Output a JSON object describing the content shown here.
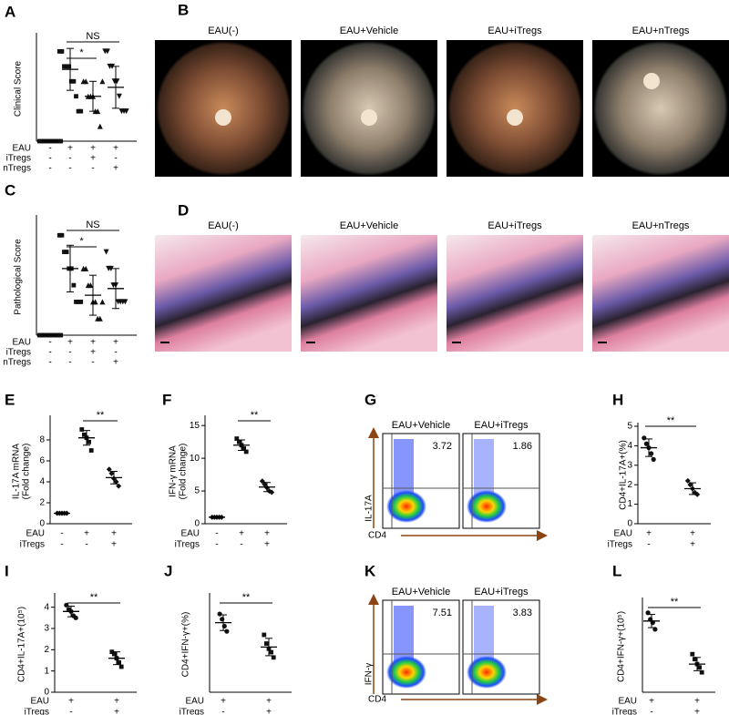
{
  "chart_data": [
    {
      "type": "dotplot",
      "letter": "A",
      "ylabel": [
        "Clinical  Score"
      ],
      "ylim": [
        0,
        3.5
      ],
      "markers": [
        "square",
        "square",
        "triangle",
        "triangle-down"
      ],
      "groups": [
        [
          0,
          0,
          0,
          0,
          0,
          0,
          0,
          0,
          0,
          0
        ],
        [
          3,
          3,
          2.5,
          2.5,
          2.5,
          2,
          2,
          1.5,
          1,
          1
        ],
        [
          2,
          2,
          1.5,
          1.5,
          1.5,
          1,
          1,
          0.5,
          2
        ],
        [
          3,
          3,
          2.5,
          2.5,
          2,
          2,
          1.5,
          1,
          1,
          1
        ]
      ],
      "mean": [
        0,
        2.4,
        1.5,
        1.8
      ],
      "sd": [
        0,
        0.7,
        0.5,
        0.7
      ],
      "brackets": [
        "*",
        "NS"
      ],
      "conditions": [
        {
          "name": "EAU",
          "marks": [
            "-",
            "+",
            "+",
            "+"
          ]
        },
        {
          "name": "iTregs",
          "marks": [
            "-",
            "-",
            "+",
            "-"
          ]
        },
        {
          "name": "nTregs",
          "marks": [
            "-",
            "-",
            "-",
            "+"
          ]
        }
      ]
    },
    {
      "type": "dotplot",
      "letter": "C",
      "ylabel": [
        "Pathological Score"
      ],
      "ylim": [
        0,
        3.5
      ],
      "markers": [
        "square",
        "square",
        "triangle",
        "triangle-down"
      ],
      "groups": [
        [
          0,
          0,
          0,
          0,
          0,
          0,
          0,
          0,
          0,
          0
        ],
        [
          3,
          3,
          2.5,
          2.5,
          2,
          2,
          1.5,
          1,
          1,
          1
        ],
        [
          2,
          2,
          1.5,
          1.5,
          1,
          1,
          0.5,
          0.5,
          1
        ],
        [
          2.5,
          2,
          2,
          1.5,
          1.5,
          1,
          1,
          1,
          1
        ]
      ],
      "mean": [
        0,
        2.0,
        1.2,
        1.4
      ],
      "sd": [
        0,
        0.7,
        0.6,
        0.6
      ],
      "brackets": [
        "*",
        "NS"
      ],
      "conditions": [
        {
          "name": "EAU",
          "marks": [
            "-",
            "+",
            "+",
            "+"
          ]
        },
        {
          "name": "iTregs",
          "marks": [
            "-",
            "-",
            "+",
            "-"
          ]
        },
        {
          "name": "nTregs",
          "marks": [
            "-",
            "-",
            "-",
            "+"
          ]
        }
      ]
    },
    {
      "type": "dotplot",
      "letter": "E",
      "ylabel": [
        "IL-17A mRNA",
        "(Fold change)"
      ],
      "ylim": [
        0,
        10
      ],
      "yticks": [
        0,
        2,
        4,
        6,
        8
      ],
      "markers": [
        "diamond",
        "square",
        "diamond"
      ],
      "groups": [
        [
          1,
          1,
          1,
          1,
          1
        ],
        [
          9.0,
          8.5,
          8.2,
          7.8,
          7.0
        ],
        [
          5.2,
          4.8,
          4.3,
          4.0,
          3.6
        ]
      ],
      "mean": [
        1,
        8.2,
        4.4
      ],
      "sd": [
        0.05,
        0.7,
        0.6
      ],
      "brackets": [
        "**"
      ],
      "conditions": [
        {
          "name": "EAU",
          "marks": [
            "-",
            "+",
            "+"
          ]
        },
        {
          "name": "iTregs",
          "marks": [
            "-",
            "-",
            "+"
          ]
        }
      ]
    },
    {
      "type": "dotplot",
      "letter": "F",
      "ylabel": [
        "IFN-γ mRNA",
        "(Fold change)"
      ],
      "ylim": [
        0,
        16
      ],
      "yticks": [
        0,
        5,
        10,
        15
      ],
      "markers": [
        "diamond",
        "square",
        "diamond"
      ],
      "groups": [
        [
          1,
          1,
          1,
          1,
          1
        ],
        [
          13,
          12.5,
          12,
          11.5,
          11
        ],
        [
          6.5,
          6,
          5.5,
          5,
          4.8
        ]
      ],
      "mean": [
        1,
        12,
        5.6
      ],
      "sd": [
        0.05,
        0.8,
        0.7
      ],
      "brackets": [
        "**"
      ],
      "conditions": [
        {
          "name": "EAU",
          "marks": [
            "-",
            "+",
            "+"
          ]
        },
        {
          "name": "iTregs",
          "marks": [
            "-",
            "-",
            "+"
          ]
        }
      ]
    },
    {
      "type": "dotplot",
      "letter": "H",
      "ylabel": [
        "CD4+IL-17A+(%)"
      ],
      "ylim": [
        0,
        5
      ],
      "yticks": [
        0,
        1,
        2,
        3,
        4,
        5
      ],
      "markers": [
        "circle",
        "diamond"
      ],
      "groups": [
        [
          4.4,
          4.1,
          3.9,
          3.6,
          3.3
        ],
        [
          2.2,
          2.0,
          1.8,
          1.6,
          1.5
        ]
      ],
      "mean": [
        3.9,
        1.8
      ],
      "sd": [
        0.45,
        0.3
      ],
      "brackets": [
        "**"
      ],
      "conditions": [
        {
          "name": "EAU",
          "marks": [
            "+",
            "+"
          ]
        },
        {
          "name": "iTregs",
          "marks": [
            "-",
            "+"
          ]
        }
      ]
    },
    {
      "type": "dotplot",
      "letter": "I",
      "ylabel": [
        "CD4+IL-17A+(10⁵)"
      ],
      "ylim": [
        0,
        4.5
      ],
      "yticks": [
        0,
        1,
        2,
        3,
        4
      ],
      "markers": [
        "circle",
        "square"
      ],
      "groups": [
        [
          4.1,
          3.9,
          3.8,
          3.6,
          3.5
        ],
        [
          1.9,
          1.8,
          1.6,
          1.4,
          1.2
        ]
      ],
      "mean": [
        3.8,
        1.6
      ],
      "sd": [
        0.25,
        0.3
      ],
      "brackets": [
        "**"
      ],
      "conditions": [
        {
          "name": "EAU",
          "marks": [
            "+",
            "+"
          ]
        },
        {
          "name": "iTregs",
          "marks": [
            "-",
            "+"
          ]
        }
      ]
    },
    {
      "type": "dotplot",
      "letter": "J",
      "ylabel": [
        "CD4+IFN-γ+(%)"
      ],
      "ylim": [
        0,
        5.5
      ],
      "markers": [
        "circle",
        "square"
      ],
      "groups": [
        [
          4.5,
          4.2,
          3.8,
          3.5
        ],
        [
          3.3,
          2.8,
          2.5,
          2.3,
          2.0
        ]
      ],
      "mean": [
        4.0,
        2.6
      ],
      "sd": [
        0.45,
        0.5
      ],
      "brackets": [
        "**"
      ],
      "conditions": [
        {
          "name": "EAU",
          "marks": [
            "+",
            "+"
          ]
        },
        {
          "name": "iTregs",
          "marks": [
            "-",
            "+"
          ]
        }
      ]
    },
    {
      "type": "dotplot",
      "letter": "L",
      "ylabel": [
        "CD4+IFN-γ+(10⁵)"
      ],
      "ylim": [
        0,
        5.5
      ],
      "markers": [
        "circle",
        "square"
      ],
      "groups": [
        [
          4.8,
          4.4,
          4.2,
          3.8
        ],
        [
          2.3,
          2.0,
          1.7,
          1.5,
          1.2
        ]
      ],
      "mean": [
        4.3,
        1.7
      ],
      "sd": [
        0.4,
        0.4
      ],
      "brackets": [
        "**"
      ],
      "conditions": [
        {
          "name": "EAU",
          "marks": [
            "+",
            "+"
          ]
        },
        {
          "name": "iTregs",
          "marks": [
            "-",
            "+"
          ]
        }
      ]
    }
  ],
  "images": [
    {
      "letter": "B",
      "labels": [
        "EAU(-)",
        "EAU+Vehicle",
        "EAU+iTregs",
        "EAU+nTregs"
      ]
    },
    {
      "letter": "D",
      "labels": [
        "EAU(-)",
        "EAU+Vehicle",
        "EAU+iTregs",
        "EAU+nTregs"
      ]
    }
  ],
  "flow": [
    {
      "letter": "G",
      "ylabel": "IL-17A",
      "xlabel": "CD4",
      "plots": [
        {
          "title": "EAU+Vehicle",
          "value": 3.72
        },
        {
          "title": "EAU+iTregs",
          "value": 1.86
        }
      ]
    },
    {
      "letter": "K",
      "ylabel": "IFN-γ",
      "xlabel": "CD4",
      "plots": [
        {
          "title": "EAU+Vehicle",
          "value": 7.51
        },
        {
          "title": "EAU+iTregs",
          "value": 3.83
        }
      ]
    }
  ]
}
